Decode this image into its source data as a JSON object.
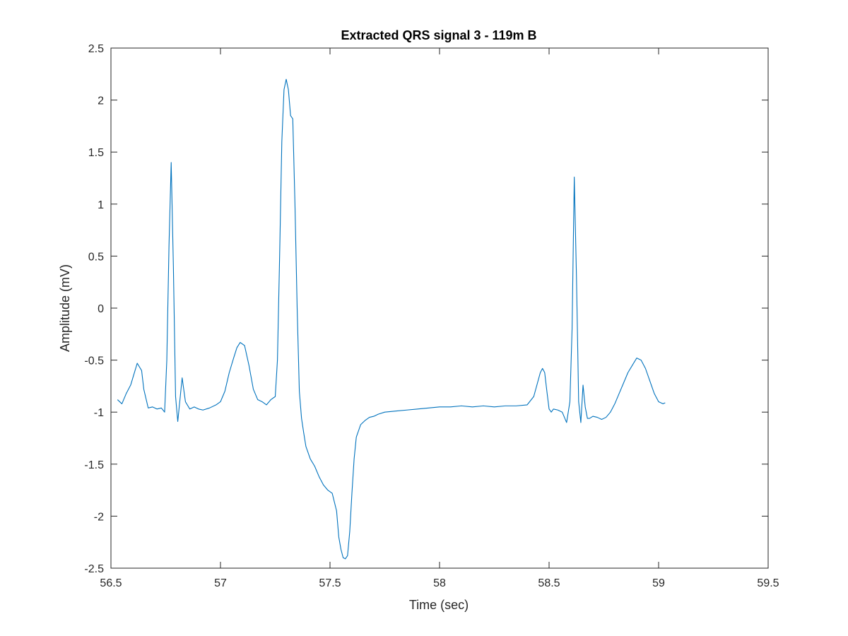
{
  "chart_data": {
    "type": "line",
    "title": "Extracted QRS signal 3 - 119m B",
    "xlabel": "Time (sec)",
    "ylabel": "Amplitude (mV)",
    "xlim": [
      56.5,
      59.5
    ],
    "ylim": [
      -2.5,
      2.5
    ],
    "xticks": [
      56.5,
      57,
      57.5,
      58,
      58.5,
      59,
      59.5
    ],
    "xtick_labels": [
      "56.5",
      "57",
      "57.5",
      "58",
      "58.5",
      "59",
      "59.5"
    ],
    "yticks": [
      2.5,
      2,
      1.5,
      1,
      0.5,
      0,
      -0.5,
      -1,
      -1.5,
      -2,
      -2.5
    ],
    "ytick_labels": [
      "2.5",
      "2",
      "1.5",
      "1",
      "0.5",
      "0",
      "-0.5",
      "-1",
      "-1.5",
      "-2",
      "-2.5"
    ],
    "grid": false,
    "series": [
      {
        "color": "#0072BD",
        "x": [
          56.53,
          56.55,
          56.57,
          56.59,
          56.61,
          56.62,
          56.64,
          56.65,
          56.67,
          56.69,
          56.71,
          56.73,
          56.745,
          56.755,
          56.765,
          56.775,
          56.785,
          56.795,
          56.805,
          56.815,
          56.825,
          56.84,
          56.86,
          56.88,
          56.9,
          56.92,
          56.95,
          56.98,
          57.0,
          57.02,
          57.04,
          57.06,
          57.075,
          57.09,
          57.11,
          57.13,
          57.15,
          57.17,
          57.19,
          57.21,
          57.23,
          57.25,
          57.26,
          57.27,
          57.28,
          57.29,
          57.3,
          57.31,
          57.32,
          57.33,
          57.34,
          57.35,
          57.36,
          57.37,
          57.38,
          57.39,
          57.41,
          57.43,
          57.45,
          57.47,
          57.49,
          57.51,
          57.53,
          57.54,
          57.55,
          57.56,
          57.57,
          57.58,
          57.59,
          57.6,
          57.61,
          57.62,
          57.64,
          57.66,
          57.68,
          57.7,
          57.72,
          57.75,
          57.8,
          57.85,
          57.9,
          57.95,
          58.0,
          58.05,
          58.1,
          58.15,
          58.2,
          58.25,
          58.3,
          58.35,
          58.4,
          58.43,
          58.46,
          58.47,
          58.48,
          58.49,
          58.5,
          58.51,
          58.52,
          58.54,
          58.56,
          58.58,
          58.595,
          58.605,
          58.615,
          58.625,
          58.635,
          58.645,
          58.655,
          58.665,
          58.675,
          58.685,
          58.7,
          58.72,
          58.74,
          58.76,
          58.78,
          58.8,
          58.82,
          58.84,
          58.86,
          58.88,
          58.9,
          58.92,
          58.94,
          58.96,
          58.98,
          59.0,
          59.02,
          59.03
        ],
        "values": [
          -0.88,
          -0.92,
          -0.82,
          -0.74,
          -0.6,
          -0.53,
          -0.6,
          -0.78,
          -0.96,
          -0.95,
          -0.97,
          -0.96,
          -1.0,
          -0.5,
          0.6,
          1.4,
          0.4,
          -0.85,
          -1.09,
          -0.88,
          -0.67,
          -0.9,
          -0.97,
          -0.95,
          -0.97,
          -0.98,
          -0.96,
          -0.93,
          -0.9,
          -0.8,
          -0.62,
          -0.48,
          -0.38,
          -0.33,
          -0.36,
          -0.55,
          -0.78,
          -0.88,
          -0.9,
          -0.93,
          -0.88,
          -0.85,
          -0.5,
          0.5,
          1.6,
          2.1,
          2.2,
          2.1,
          1.85,
          1.82,
          1.0,
          0.0,
          -0.8,
          -1.06,
          -1.2,
          -1.33,
          -1.45,
          -1.52,
          -1.62,
          -1.7,
          -1.75,
          -1.78,
          -1.95,
          -2.2,
          -2.32,
          -2.4,
          -2.41,
          -2.38,
          -2.15,
          -1.78,
          -1.45,
          -1.24,
          -1.12,
          -1.08,
          -1.05,
          -1.04,
          -1.02,
          -1.0,
          -0.99,
          -0.98,
          -0.97,
          -0.96,
          -0.95,
          -0.95,
          -0.94,
          -0.95,
          -0.94,
          -0.95,
          -0.94,
          -0.94,
          -0.93,
          -0.85,
          -0.62,
          -0.58,
          -0.62,
          -0.8,
          -0.97,
          -1.0,
          -0.97,
          -0.98,
          -1.0,
          -1.1,
          -0.9,
          -0.2,
          1.26,
          0.3,
          -0.9,
          -1.1,
          -0.74,
          -0.95,
          -1.06,
          -1.06,
          -1.04,
          -1.05,
          -1.07,
          -1.05,
          -1.0,
          -0.92,
          -0.82,
          -0.72,
          -0.62,
          -0.55,
          -0.48,
          -0.5,
          -0.58,
          -0.7,
          -0.82,
          -0.9,
          -0.92,
          -0.91
        ]
      }
    ]
  }
}
